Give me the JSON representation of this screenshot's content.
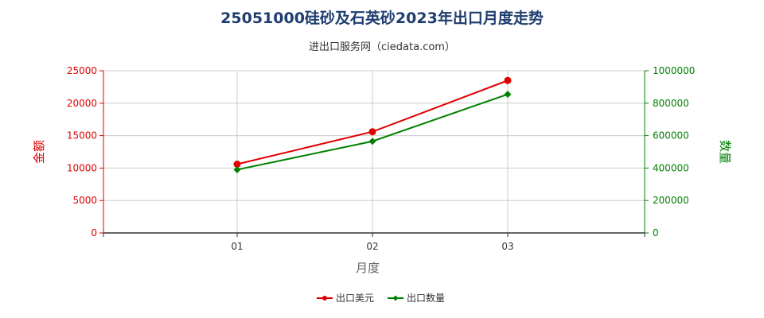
{
  "chart_data": {
    "type": "line",
    "title": "25051000硅砂及石英砂2023年出口月度走势",
    "subtitle": "进出口服务网（ciedata.com）",
    "xlabel": "月度",
    "ylabel_left": "金额",
    "ylabel_right": "数量",
    "categories": [
      "01",
      "02",
      "03"
    ],
    "y_left": {
      "min": 0,
      "max": 25000,
      "ticks": [
        "0",
        "5000",
        "10000",
        "15000",
        "20000",
        "25000"
      ]
    },
    "y_right": {
      "min": 0,
      "max": 1000000,
      "ticks": [
        "0",
        "200000",
        "400000",
        "600000",
        "800000",
        "1000000"
      ]
    },
    "grid": true,
    "legend_position": "bottom-center",
    "series": [
      {
        "name": "出口美元",
        "axis": "left",
        "color": "#e00000",
        "marker": "circle",
        "values": [
          10600,
          15600,
          23500
        ]
      },
      {
        "name": "出口数量",
        "axis": "right",
        "color": "#008000",
        "marker": "diamond",
        "values": [
          390000,
          565000,
          855000
        ]
      }
    ]
  },
  "colors": {
    "left_axis": "#e00000",
    "right_axis": "#008000",
    "grid": "#cccccc"
  }
}
